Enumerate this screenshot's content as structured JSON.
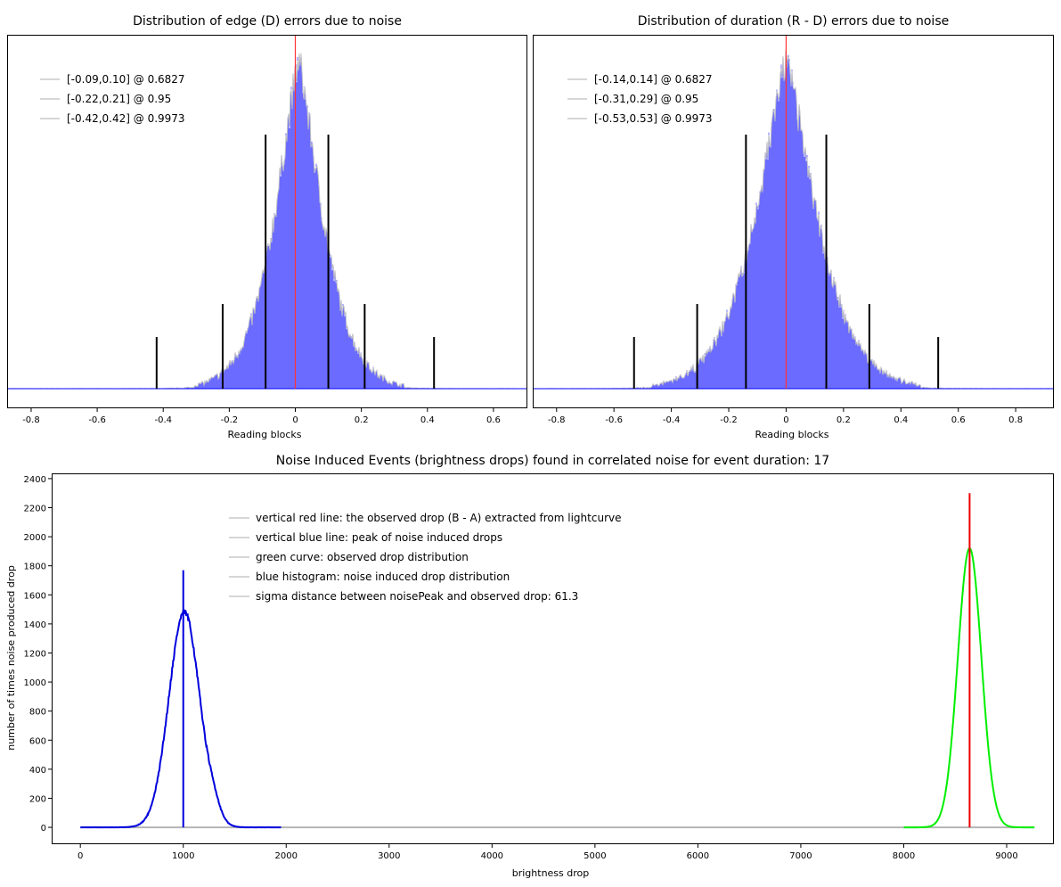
{
  "charts": {
    "edge": {
      "title": "Distribution of edge (D) errors due to noise",
      "xlabel": "Reading blocks",
      "legend": [
        "[-0.09,0.10] @ 0.6827",
        "[-0.22,0.21] @ 0.95",
        "[-0.42,0.42] @ 0.9973"
      ]
    },
    "duration": {
      "title": "Distribution of duration (R - D) errors due to noise",
      "xlabel": "Reading blocks",
      "legend": [
        "[-0.14,0.14] @ 0.6827",
        "[-0.31,0.29] @ 0.95",
        "[-0.53,0.53] @ 0.9973"
      ]
    },
    "events": {
      "title": "Noise Induced Events (brightness drops) found in correlated noise for event duration: 17",
      "xlabel": "brightness drop",
      "ylabel": "number of times noise produced drop",
      "legend": [
        "vertical red line: the observed drop (B - A) extracted from lightcurve",
        "vertical blue line: peak of noise induced drops",
        "green curve: observed drop distribution",
        "blue histogram: noise induced drop distribution",
        "sigma distance between noisePeak and observed drop: 61.3"
      ]
    }
  },
  "chart_data": [
    {
      "type": "bar",
      "title": "Distribution of edge (D) errors due to noise",
      "xlabel": "Reading blocks",
      "xlim": [
        -0.87,
        0.7
      ],
      "xticks": [
        "-0.8",
        "-0.6",
        "-0.4",
        "-0.2",
        "0",
        "0.2",
        "0.4",
        "0.6"
      ],
      "distribution": {
        "mean": 0.01,
        "sigma": 0.095,
        "shape": "laplace-like"
      },
      "confidence_lines": [
        {
          "x": -0.09,
          "level": 0.6827
        },
        {
          "x": 0.1,
          "level": 0.6827
        },
        {
          "x": -0.22,
          "level": 0.95
        },
        {
          "x": 0.21,
          "level": 0.95
        },
        {
          "x": -0.42,
          "level": 0.9973
        },
        {
          "x": 0.42,
          "level": 0.9973
        }
      ],
      "center_line": 0,
      "colors": {
        "histogram": "#6464ff",
        "outline": "#c0c0c0",
        "center": "#ff3333",
        "conf": "#000000"
      }
    },
    {
      "type": "bar",
      "title": "Distribution of duration (R - D) errors due to noise",
      "xlabel": "Reading blocks",
      "xlim": [
        -0.88,
        0.93
      ],
      "xticks": [
        "-0.8",
        "-0.6",
        "-0.4",
        "-0.2",
        "0",
        "0.2",
        "0.4",
        "0.6",
        "0.8"
      ],
      "distribution": {
        "mean": 0.0,
        "sigma": 0.14,
        "shape": "laplace-like"
      },
      "confidence_lines": [
        {
          "x": -0.14,
          "level": 0.6827
        },
        {
          "x": 0.14,
          "level": 0.6827
        },
        {
          "x": -0.31,
          "level": 0.95
        },
        {
          "x": 0.29,
          "level": 0.95
        },
        {
          "x": -0.53,
          "level": 0.9973
        },
        {
          "x": 0.53,
          "level": 0.9973
        }
      ],
      "center_line": 0,
      "colors": {
        "histogram": "#6464ff",
        "outline": "#c0c0c0",
        "center": "#ff3333",
        "conf": "#000000"
      }
    },
    {
      "type": "line",
      "title": "Noise Induced Events (brightness drops) found in correlated noise for event duration: 17",
      "xlabel": "brightness drop",
      "ylabel": "number of times noise produced drop",
      "xlim": [
        -270,
        9450
      ],
      "ylim": [
        -110,
        2430
      ],
      "xticks": [
        "0",
        "1000",
        "2000",
        "3000",
        "4000",
        "5000",
        "6000",
        "7000",
        "8000",
        "9000"
      ],
      "yticks": [
        "0",
        "200",
        "400",
        "600",
        "800",
        "1000",
        "1200",
        "1400",
        "1600",
        "1800",
        "2000",
        "2200",
        "2400"
      ],
      "series": [
        {
          "name": "blue histogram: noise induced drop distribution",
          "color": "#0000dd",
          "peak_x": 1010,
          "peak_y": 1480,
          "sigma": 150,
          "x_range": [
            0,
            1950
          ]
        },
        {
          "name": "green curve: observed drop distribution",
          "color": "#00ee00",
          "peak_x": 8640,
          "peak_y": 1920,
          "sigma": 115,
          "x_range": [
            8000,
            9270
          ]
        }
      ],
      "vertical_lines": [
        {
          "x": 1000,
          "y_top": 1770,
          "color": "#0000dd",
          "label": "vertical blue line: peak of noise induced drops"
        },
        {
          "x": 8640,
          "y_top": 2300,
          "color": "#ee0000",
          "label": "vertical red line: the observed drop (B - A) extracted from lightcurve"
        }
      ],
      "sigma_distance": 61.3
    }
  ]
}
